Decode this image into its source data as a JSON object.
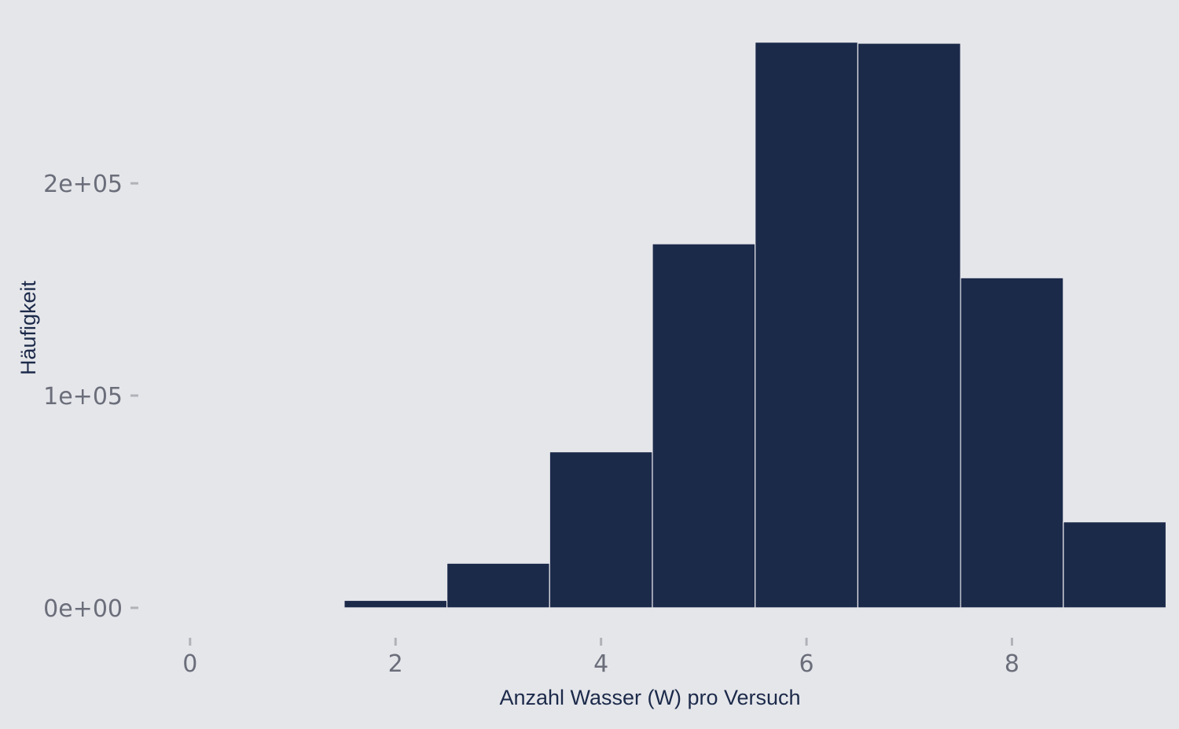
{
  "colors": {
    "background": "#e5e6ea",
    "bar_fill": "#1c2a4a",
    "bar_edge": "#e5e6ea",
    "tick_mark": "#b0b2b8",
    "tick_label": "#6b6e7a",
    "axis_title": "#1c2a4a"
  },
  "chart_data": {
    "type": "bar",
    "subtype": "histogram",
    "title": "",
    "xlabel": "Anzahl Wasser (W) pro Versuch",
    "ylabel": "Häufigkeit",
    "xlim": [
      -0.45,
      9.45
    ],
    "ylim": [
      -13000,
      266000
    ],
    "x_ticks": [
      0,
      2,
      4,
      6,
      8
    ],
    "x_tick_labels": [
      "0",
      "2",
      "4",
      "6",
      "8"
    ],
    "y_ticks": [
      0,
      100000,
      200000
    ],
    "y_tick_labels": [
      "0e+00",
      "1e+05",
      "2e+05"
    ],
    "grid": false,
    "legend": "none",
    "bin_width": 1,
    "categories": [
      "1",
      "2",
      "3",
      "4",
      "5",
      "6",
      "7",
      "8",
      "9"
    ],
    "x": [
      1,
      2,
      3,
      4,
      5,
      6,
      7,
      8,
      9
    ],
    "values": [
      300,
      3500,
      21000,
      73500,
      171500,
      266500,
      266000,
      155500,
      40500
    ]
  }
}
